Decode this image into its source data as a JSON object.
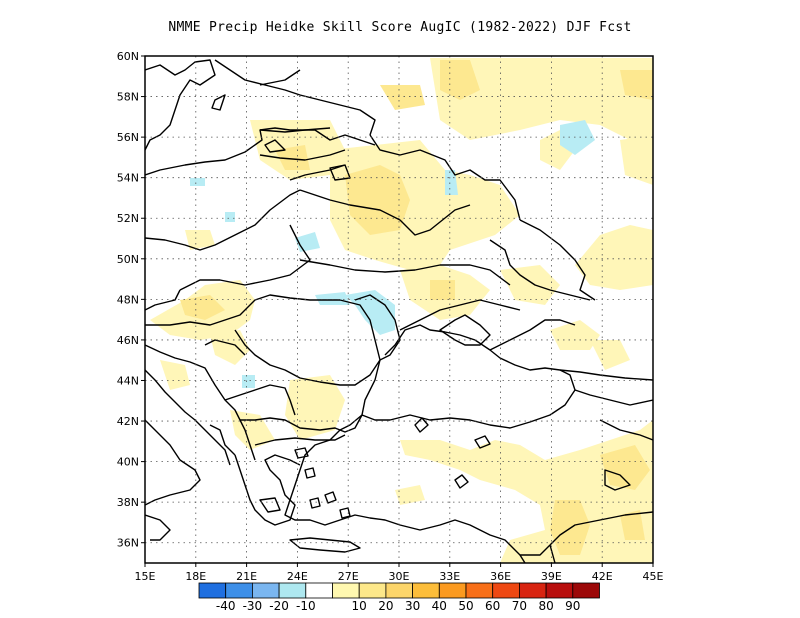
{
  "title": "NMME Precip Heidke Skill Score AugIC (1982-2022) DJF Fcst",
  "map": {
    "lon_range": [
      15,
      45
    ],
    "lat_range": [
      35,
      60
    ],
    "lon_ticks": [
      "15E",
      "18E",
      "21E",
      "24E",
      "27E",
      "30E",
      "33E",
      "36E",
      "39E",
      "42E",
      "45E"
    ],
    "lat_ticks": [
      "36N",
      "38N",
      "40N",
      "42N",
      "44N",
      "46N",
      "48N",
      "50N",
      "52N",
      "54N",
      "56N",
      "58N",
      "60N"
    ],
    "grid": true,
    "grid_style": "dotted"
  },
  "colorbar": {
    "colors": [
      "#1f6fe0",
      "#3d8fe8",
      "#7ab6f0",
      "#aee8f0",
      "#ffffff",
      "#fff8b0",
      "#fde88a",
      "#fcd56a",
      "#fcbd3a",
      "#fb9a20",
      "#f86f18",
      "#ee4812",
      "#d82410",
      "#b80e0c",
      "#9c0808"
    ],
    "labels": [
      "-40",
      "-30",
      "-20",
      "-10",
      "10",
      "20",
      "30",
      "40",
      "50",
      "60",
      "70",
      "80",
      "90"
    ]
  },
  "field_colors": {
    "light_yellow": "#fff6b8",
    "yellow": "#fde890",
    "light_cyan": "#b8ecf4"
  }
}
